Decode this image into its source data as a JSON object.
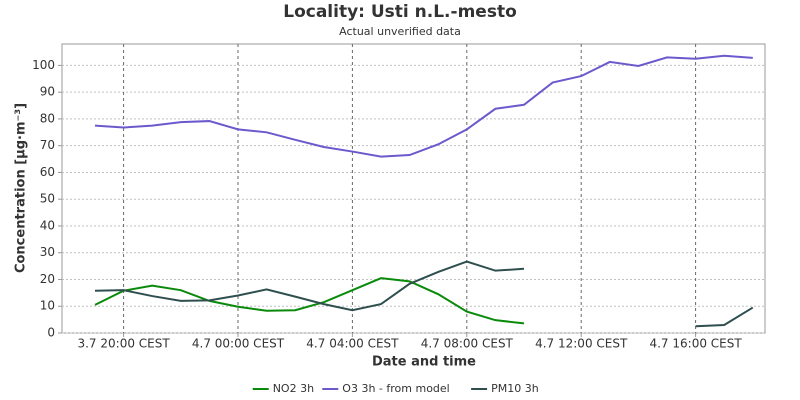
{
  "chart_data": {
    "type": "line",
    "title": "Locality: Usti n.L.-mesto",
    "subtitle": "Actual unverified data",
    "x_label": "Date and time",
    "y_label": "Concentration [µg·m⁻³]",
    "categories": [
      null,
      "3.7 20:00 CEST",
      null,
      null,
      null,
      "4.7 00:00 CEST",
      null,
      null,
      null,
      "4.7 04:00 CEST",
      null,
      null,
      null,
      "4.7 08:00 CEST",
      null,
      null,
      null,
      "4.7 12:00 CEST",
      null,
      null,
      null,
      "4.7 16:00 CEST",
      null,
      null
    ],
    "series": [
      {
        "name": "NO2 3h",
        "color": "#0a8a0a",
        "values": [
          10.5,
          15.8,
          17.7,
          16,
          12,
          9.8,
          8.3,
          8.5,
          11.5,
          16,
          20.5,
          19.3,
          14.5,
          8,
          4.8,
          3.6,
          null,
          null,
          null,
          null,
          null,
          null,
          null,
          null
        ]
      },
      {
        "name": "O3 3h - from model",
        "color": "#6a5acd",
        "values": [
          77.5,
          76.8,
          77.5,
          78.8,
          79.2,
          76.1,
          75,
          72.2,
          69.5,
          67.8,
          65.9,
          66.5,
          70.5,
          76.1,
          83.8,
          85.3,
          93.6,
          96,
          101.3,
          99.8,
          103,
          102.5,
          103.6,
          102.8
        ]
      },
      {
        "name": "PM10 3h",
        "color": "#2f4f4f",
        "values": [
          15.8,
          16,
          13.8,
          12,
          12.2,
          14,
          16.3,
          13.6,
          10.8,
          8.5,
          10.8,
          18.4,
          22.8,
          26.7,
          23.3,
          24,
          null,
          null,
          null,
          null,
          null,
          2.5,
          3,
          9.5
        ]
      }
    ],
    "ylim": [
      0,
      108
    ],
    "yticks": [
      0,
      10,
      20,
      30,
      40,
      50,
      60,
      70,
      80,
      90,
      100
    ],
    "grid": true,
    "legend": "bottom"
  }
}
